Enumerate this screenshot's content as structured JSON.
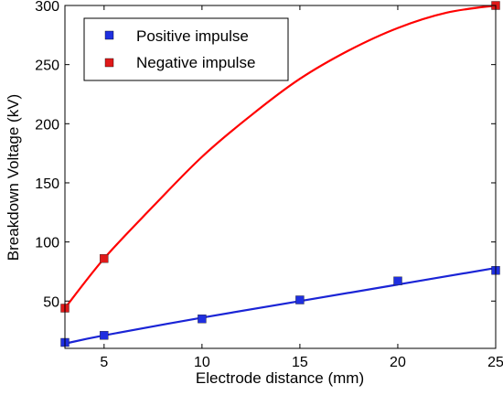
{
  "chart_data": {
    "type": "line",
    "xlabel": "Electrode distance (mm)",
    "ylabel": "Breakdown Voltage (kV)",
    "xlim": [
      3,
      25
    ],
    "ylim": [
      10,
      300
    ],
    "xticks": [
      5,
      10,
      15,
      20,
      25
    ],
    "yticks": [
      50,
      100,
      150,
      200,
      250,
      300
    ],
    "grid": false,
    "legend_position": "top-left",
    "series": [
      {
        "name": "Positive impulse",
        "marker_color": "#1f2fe0",
        "line_color": "#1a24d6",
        "points": [
          {
            "x": 3,
            "y": 15
          },
          {
            "x": 5,
            "y": 21
          },
          {
            "x": 10,
            "y": 35
          },
          {
            "x": 15,
            "y": 51
          },
          {
            "x": 20,
            "y": 67
          },
          {
            "x": 25,
            "y": 76
          }
        ],
        "fit": [
          {
            "x": 3,
            "y": 14
          },
          {
            "x": 5,
            "y": 21
          },
          {
            "x": 10,
            "y": 36
          },
          {
            "x": 15,
            "y": 50
          },
          {
            "x": 20,
            "y": 64
          },
          {
            "x": 25,
            "y": 78
          }
        ]
      },
      {
        "name": "Negative impulse",
        "marker_color": "#e01a1a",
        "line_color": "#ff0000",
        "points": [
          {
            "x": 3,
            "y": 44
          },
          {
            "x": 5,
            "y": 86
          },
          {
            "x": 25,
            "y": 300
          }
        ],
        "fit": [
          {
            "x": 3,
            "y": 44
          },
          {
            "x": 5,
            "y": 86
          },
          {
            "x": 7.5,
            "y": 130
          },
          {
            "x": 10,
            "y": 172
          },
          {
            "x": 12.5,
            "y": 207
          },
          {
            "x": 15,
            "y": 238
          },
          {
            "x": 17.5,
            "y": 262
          },
          {
            "x": 20,
            "y": 281
          },
          {
            "x": 22.5,
            "y": 294
          },
          {
            "x": 25,
            "y": 300
          }
        ]
      }
    ]
  }
}
